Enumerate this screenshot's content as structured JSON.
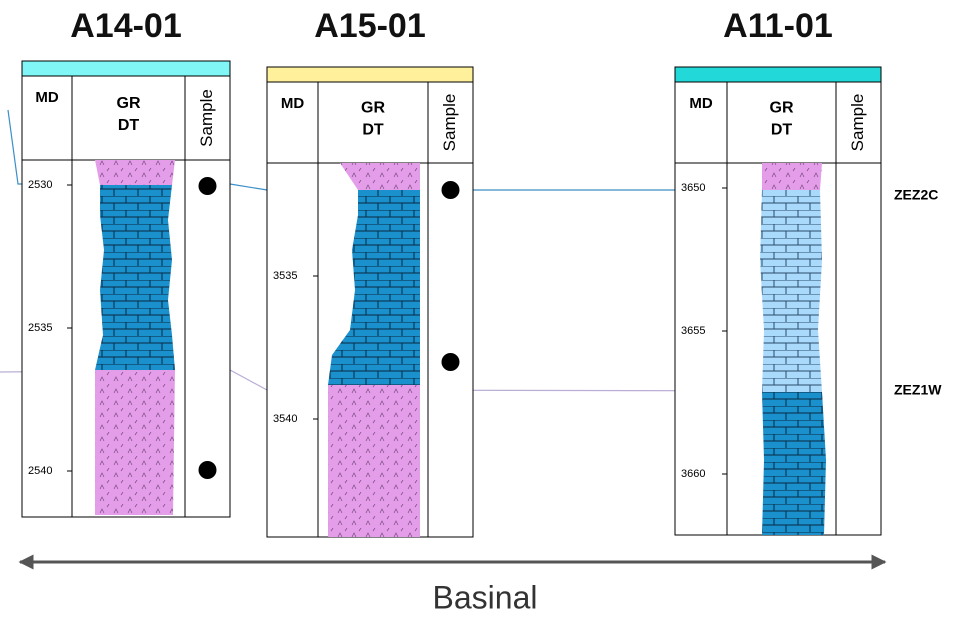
{
  "wells": [
    {
      "name": "A14-01",
      "headers": {
        "md": "MD",
        "gr": "GR",
        "dt": "DT",
        "sample": "Sample"
      },
      "depth_ticks": [
        2530,
        2535,
        2540
      ]
    },
    {
      "name": "A15-01",
      "headers": {
        "md": "MD",
        "gr": "GR",
        "dt": "DT",
        "sample": "Sample"
      },
      "depth_ticks": [
        3535,
        3540
      ]
    },
    {
      "name": "A11-01",
      "headers": {
        "md": "MD",
        "gr": "GR",
        "dt": "DT",
        "sample": "Sample"
      },
      "depth_ticks": [
        3650,
        3655,
        3660
      ]
    }
  ],
  "horizons": [
    {
      "label": "ZEZ2C"
    },
    {
      "label": "ZEZ1W"
    }
  ],
  "caption": "Basinal"
}
